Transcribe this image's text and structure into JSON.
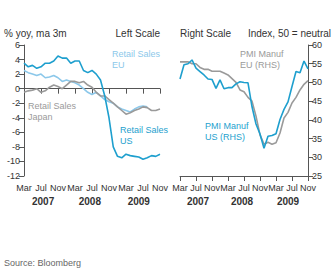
{
  "source": "Source: Bloomberg",
  "chart_data": [
    {
      "type": "line",
      "title": "Left Scale",
      "y_label": "% yoy, ma 3m",
      "categories": [
        "Mar",
        null,
        null,
        null,
        "Jul",
        null,
        null,
        null,
        "Nov",
        null,
        null,
        null,
        "Mar",
        null,
        null,
        null,
        "Jul",
        null,
        null,
        null,
        "Nov",
        null,
        null,
        null,
        "Mar",
        null,
        null,
        null,
        "Jul",
        null,
        null,
        null,
        "Nov"
      ],
      "x_groups": [
        {
          "label": "2007",
          "span": 10
        },
        {
          "label": "2008",
          "span": 12
        },
        {
          "label": "2009",
          "span": 11
        }
      ],
      "ylim": [
        -12,
        6
      ],
      "yticks": [
        -12,
        -10,
        -8,
        -6,
        -4,
        -2,
        0,
        2,
        4,
        6
      ],
      "grid": false,
      "series": [
        {
          "name": "Retail Sales EU",
          "color": "#8cc8ea",
          "values": [
            2.5,
            2.2,
            2.0,
            1.8,
            2.0,
            1.5,
            1.6,
            1.8,
            1.5,
            1.0,
            1.2,
            1.0,
            0.8,
            0.5,
            0.0,
            -0.5,
            -0.8,
            -0.5,
            -1.0,
            -1.5,
            -1.8,
            -2.0,
            -2.5,
            -2.8,
            -3.0,
            -3.2,
            -2.8,
            -2.5,
            -2.4,
            -2.5,
            null,
            null,
            null
          ]
        },
        {
          "name": "Retail Sales Japan",
          "color": "#9a9a9a",
          "values": [
            -0.5,
            -0.3,
            -0.2,
            0,
            -0.5,
            -0.3,
            0.2,
            0.5,
            0.3,
            0,
            0.5,
            1.0,
            1.0,
            0.8,
            1.0,
            0.5,
            0.2,
            -0.5,
            -1.0,
            -1.0,
            -1.5,
            -2.0,
            -2.5,
            -3.0,
            -3.5,
            -3.3,
            -3.0,
            -2.8,
            -2.5,
            -2.6,
            -3.0,
            -3.0,
            -2.8
          ]
        },
        {
          "name": "Retail Sales US",
          "color": "#1e9fce",
          "values": [
            3.5,
            3,
            3.2,
            2.8,
            3,
            3.5,
            3.5,
            3.8,
            4.5,
            4.2,
            4.2,
            3.5,
            3.8,
            3.8,
            2.5,
            2.2,
            2.5,
            2.0,
            1.2,
            -1,
            -4,
            -8,
            -9.3,
            -9.5,
            -9,
            -9.2,
            -9.3,
            -9.4,
            -9.7,
            -9.5,
            -9.2,
            -9.3,
            -9.0
          ]
        }
      ]
    },
    {
      "type": "line",
      "title": "Right Scale",
      "y_label": "Index, 50 = neutral",
      "categories": [
        "Mar",
        null,
        null,
        null,
        "Jul",
        null,
        null,
        null,
        "Nov",
        null,
        null,
        null,
        "Mar",
        null,
        null,
        null,
        "Jul",
        null,
        null,
        null,
        "Nov",
        null,
        null,
        null,
        "Mar",
        null,
        null,
        null,
        "Jul",
        null,
        null,
        null,
        "Nov"
      ],
      "x_groups": [
        {
          "label": "2007",
          "span": 10
        },
        {
          "label": "2008",
          "span": 12
        },
        {
          "label": "2009",
          "span": 11
        }
      ],
      "y2lim": [
        25,
        60
      ],
      "y2ticks": [
        25,
        30,
        35,
        40,
        45,
        50,
        55,
        60
      ],
      "grid": false,
      "series": [
        {
          "name": "PMI Manuf EU (RHS)",
          "color": "#9a9a9a",
          "axis": "y2",
          "values": [
            55.5,
            55.5,
            55.5,
            55.0,
            55.0,
            54.0,
            53.5,
            53.5,
            53.0,
            53.0,
            53.0,
            52.5,
            52.0,
            51.0,
            50.0,
            48.0,
            47.5,
            46.0,
            45.0,
            41.0,
            36.0,
            33.5,
            34.0,
            33.5,
            33.9,
            36.5,
            40.5,
            42.0,
            44.5,
            46.0,
            48.0,
            49.5,
            50.5
          ]
        },
        {
          "name": "PMI Manuf US (RHS)",
          "color": "#1e9fce",
          "axis": "y2",
          "values": [
            50.9,
            54.7,
            55.0,
            56.0,
            53.8,
            52.9,
            52.0,
            50.9,
            50.8,
            48.4,
            50.7,
            48.3,
            48.6,
            48.6,
            49.6,
            50.2,
            50.0,
            49.9,
            43.5,
            38.9,
            36.2,
            32.4,
            35.6,
            35.8,
            36.3,
            40.1,
            42.8,
            44.8,
            48.9,
            52.9,
            52.6,
            55.7,
            53.6
          ]
        }
      ]
    }
  ]
}
